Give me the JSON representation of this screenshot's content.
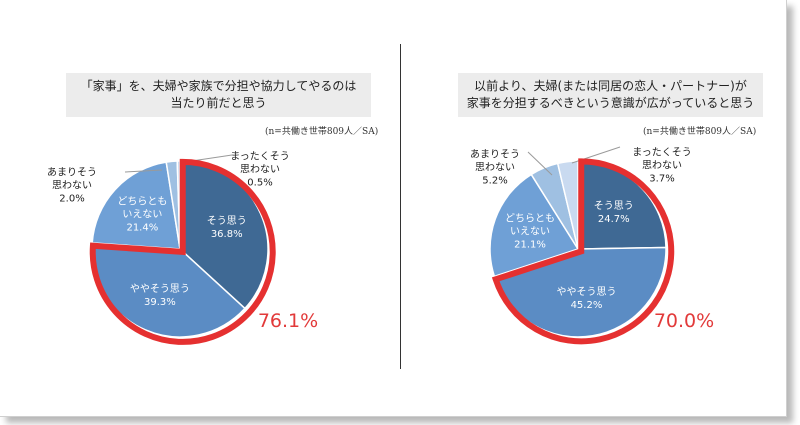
{
  "chart_data": [
    {
      "type": "pie",
      "title_lines": [
        "「家事」を、夫婦や家族で分担や協力してやるのは",
        "当たり前だと思う"
      ],
      "note": "(n=共働き世帯809人／SA)",
      "highlight_total": "76.1%",
      "slices": [
        {
          "label": [
            "そう思う"
          ],
          "value": 36.8,
          "value_label": "36.8%",
          "color": "#3f6994",
          "placement": "inside",
          "highlight": true
        },
        {
          "label": [
            "ややそう思う"
          ],
          "value": 39.3,
          "value_label": "39.3%",
          "color": "#5b8cc4",
          "placement": "inside",
          "highlight": true
        },
        {
          "label": [
            "どちらとも",
            "いえない"
          ],
          "value": 21.4,
          "value_label": "21.4%",
          "color": "#6fa0d6",
          "placement": "inside",
          "highlight": false
        },
        {
          "label": [
            "あまりそう",
            "思わない"
          ],
          "value": 2.0,
          "value_label": "2.0%",
          "color": "#9fc0e2",
          "placement": "outside",
          "highlight": false
        },
        {
          "label": [
            "まったくそう",
            "思わない"
          ],
          "value": 0.5,
          "value_label": "0.5%",
          "color": "#c9daf0",
          "placement": "outside",
          "highlight": false
        }
      ]
    },
    {
      "type": "pie",
      "title_lines": [
        "以前より、夫婦(または同居の恋人・パートナー)が",
        "家事を分担するべきという意識が広がっていると思う"
      ],
      "note": "(n=共働き世帯809人／SA)",
      "highlight_total": "70.0%",
      "slices": [
        {
          "label": [
            "そう思う"
          ],
          "value": 24.7,
          "value_label": "24.7%",
          "color": "#3f6994",
          "placement": "inside",
          "highlight": true
        },
        {
          "label": [
            "ややそう思う"
          ],
          "value": 45.2,
          "value_label": "45.2%",
          "color": "#5b8cc4",
          "placement": "inside",
          "highlight": true
        },
        {
          "label": [
            "どちらとも",
            "いえない"
          ],
          "value": 21.1,
          "value_label": "21.1%",
          "color": "#6fa0d6",
          "placement": "inside",
          "highlight": false
        },
        {
          "label": [
            "あまりそう",
            "思わない"
          ],
          "value": 5.2,
          "value_label": "5.2%",
          "color": "#9fc0e2",
          "placement": "outside",
          "highlight": false
        },
        {
          "label": [
            "まったくそう",
            "思わない"
          ],
          "value": 3.7,
          "value_label": "3.7%",
          "color": "#c9daf0",
          "placement": "outside",
          "highlight": false
        }
      ]
    }
  ]
}
